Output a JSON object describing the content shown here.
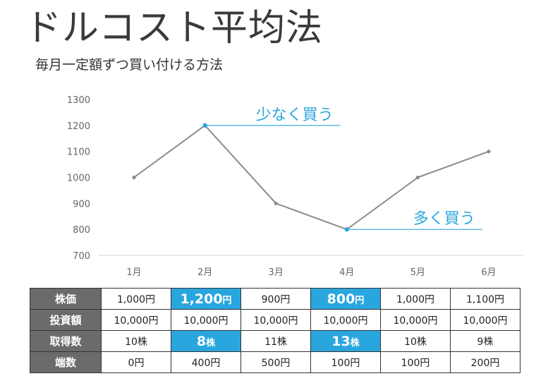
{
  "title": "ドルコスト平均法",
  "subtitle": "毎月一定額ずつ買い付ける方法",
  "colors": {
    "line": "#8c8c8c",
    "accent": "#2aa6df",
    "header_bg": "#6b6b6b",
    "axis_text": "#666666"
  },
  "chart_data": {
    "type": "line",
    "title": "",
    "xlabel": "",
    "ylabel": "",
    "categories": [
      "1月",
      "2月",
      "3月",
      "4月",
      "5月",
      "6月"
    ],
    "values": [
      1000,
      1200,
      900,
      800,
      1000,
      1100
    ],
    "ylim": [
      700,
      1300
    ],
    "yticks": [
      700,
      800,
      900,
      1000,
      1100,
      1200,
      1300
    ],
    "grid": false,
    "annotations": [
      {
        "text": "少なく買う",
        "category_index": 1,
        "value": 1200
      },
      {
        "text": "多く買う",
        "category_index": 3,
        "value": 800
      }
    ]
  },
  "table": {
    "rows": [
      {
        "label": "株価",
        "cells": [
          {
            "num": "1,000",
            "unit": "円"
          },
          {
            "num": "1,200",
            "unit": "円",
            "highlight": true
          },
          {
            "num": "900",
            "unit": "円"
          },
          {
            "num": "800",
            "unit": "円",
            "highlight": true
          },
          {
            "num": "1,000",
            "unit": "円"
          },
          {
            "num": "1,100",
            "unit": "円"
          }
        ]
      },
      {
        "label": "投資額",
        "cells": [
          {
            "num": "10,000",
            "unit": "円"
          },
          {
            "num": "10,000",
            "unit": "円"
          },
          {
            "num": "10,000",
            "unit": "円"
          },
          {
            "num": "10,000",
            "unit": "円"
          },
          {
            "num": "10,000",
            "unit": "円"
          },
          {
            "num": "10,000",
            "unit": "円"
          }
        ]
      },
      {
        "label": "取得数",
        "cells": [
          {
            "num": "10",
            "unit": "株"
          },
          {
            "num": "8",
            "unit": "株",
            "highlight": true
          },
          {
            "num": "11",
            "unit": "株"
          },
          {
            "num": "13",
            "unit": "株",
            "highlight": true
          },
          {
            "num": "10",
            "unit": "株"
          },
          {
            "num": "9",
            "unit": "株"
          }
        ]
      },
      {
        "label": "端数",
        "cells": [
          {
            "num": "0",
            "unit": "円"
          },
          {
            "num": "400",
            "unit": "円"
          },
          {
            "num": "500",
            "unit": "円"
          },
          {
            "num": "100",
            "unit": "円"
          },
          {
            "num": "100",
            "unit": "円"
          },
          {
            "num": "200",
            "unit": "円"
          }
        ]
      }
    ]
  }
}
